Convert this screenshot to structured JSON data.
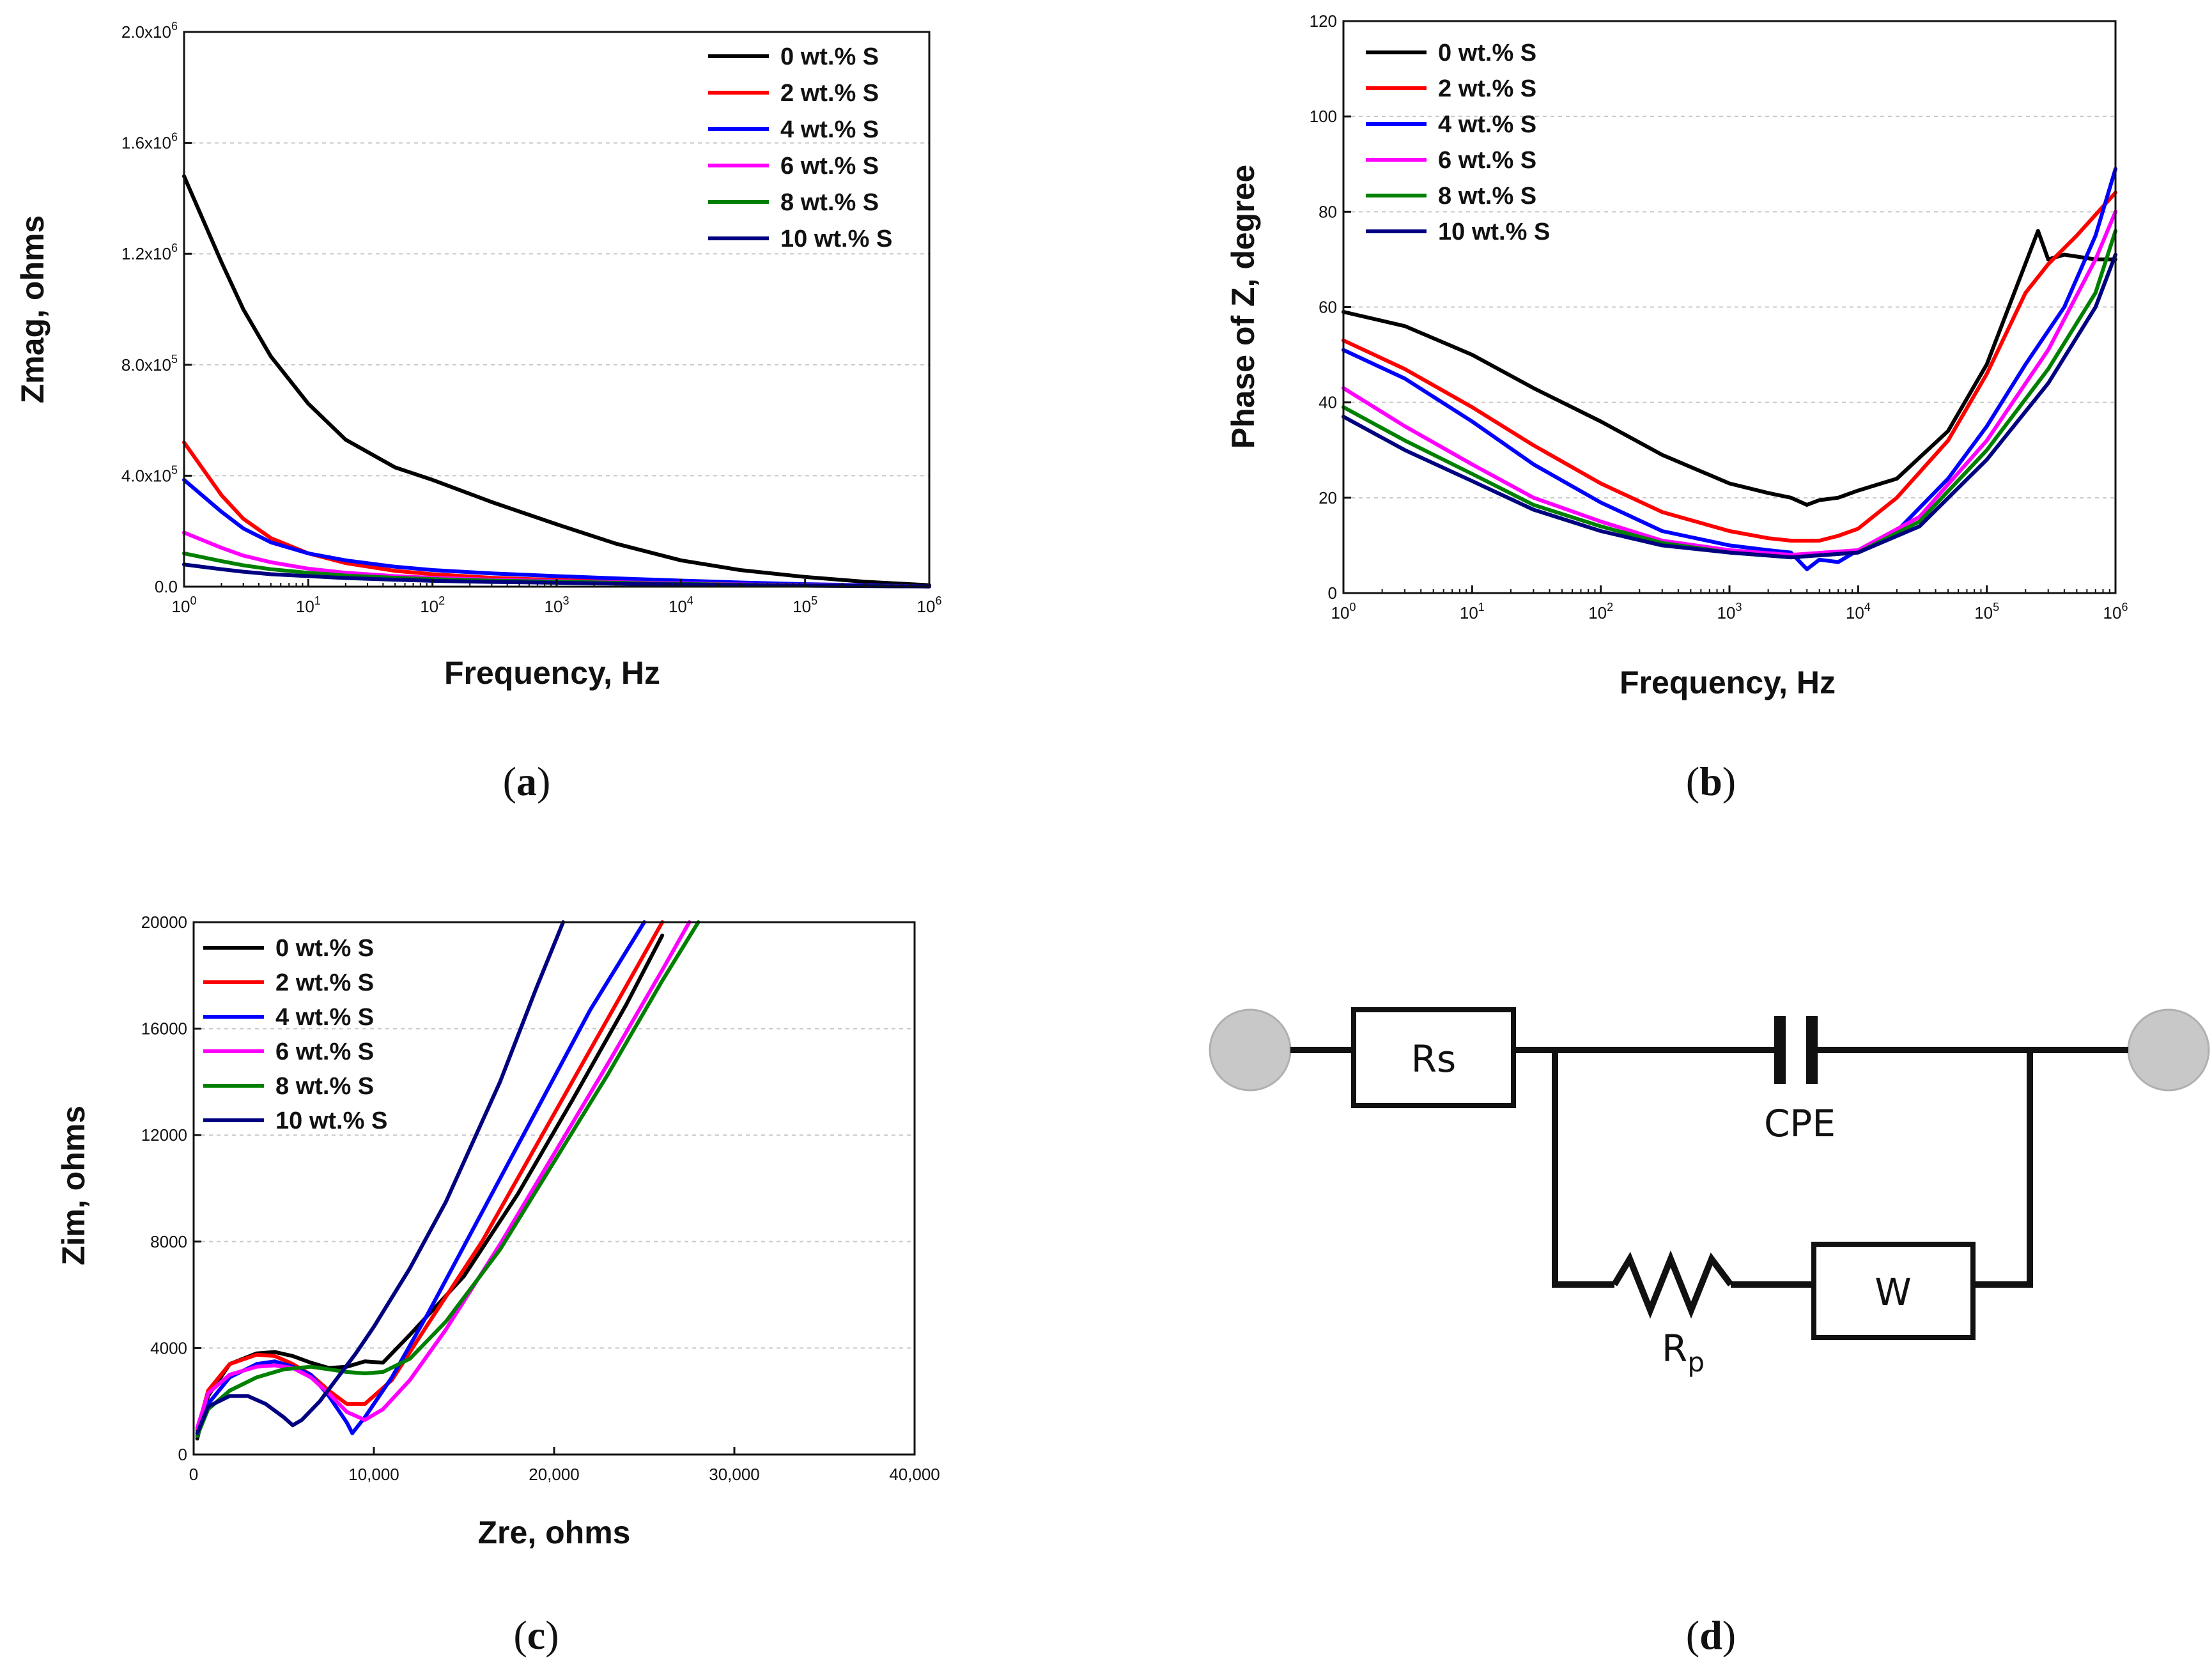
{
  "chart_data": [
    {
      "panel": "(a)",
      "type": "line",
      "xlabel": "Frequency, Hz",
      "ylabel": "Zmag, ohms",
      "xscale": "log",
      "xlim": [
        1,
        1000000
      ],
      "ylim": [
        0,
        2000000
      ],
      "xticks": [
        "10^0",
        "10^1",
        "10^2",
        "10^3",
        "10^4",
        "10^5",
        "10^6"
      ],
      "yticks": [
        "0.0",
        "4.0x10^5",
        "8.0x10^5",
        "1.2x10^6",
        "1.6x10^6",
        "2.0x10^6"
      ],
      "grid": "horizontal dashed",
      "legend_position": "top-right",
      "x": [
        1,
        2,
        3,
        5,
        10,
        20,
        50,
        100,
        300,
        1000,
        3000,
        10000,
        30000,
        100000,
        300000,
        1000000
      ],
      "series": [
        {
          "name": "0 wt.% S",
          "color": "#000000",
          "values": [
            1480000,
            1170000,
            1000000,
            830000,
            660000,
            530000,
            430000,
            385000,
            305000,
            225000,
            155000,
            95000,
            60000,
            35000,
            18000,
            5000
          ]
        },
        {
          "name": "2 wt.% S",
          "color": "#ff0000",
          "values": [
            520000,
            330000,
            245000,
            175000,
            120000,
            85000,
            57000,
            45000,
            32000,
            24000,
            18000,
            12000,
            8000,
            5000,
            3000,
            1000
          ]
        },
        {
          "name": "4 wt.% S",
          "color": "#0000ff",
          "values": [
            385000,
            270000,
            210000,
            160000,
            120000,
            95000,
            72000,
            60000,
            48000,
            38000,
            30000,
            22000,
            15000,
            9000,
            5000,
            1000
          ]
        },
        {
          "name": "6 wt.% S",
          "color": "#ff00ff",
          "values": [
            195000,
            140000,
            112000,
            88000,
            65000,
            50000,
            38000,
            32000,
            25000,
            20000,
            16000,
            12000,
            8000,
            5000,
            3000,
            1000
          ]
        },
        {
          "name": "8 wt.% S",
          "color": "#008000",
          "values": [
            120000,
            92000,
            77000,
            63000,
            50000,
            40000,
            32000,
            27000,
            22000,
            18000,
            14000,
            10000,
            7000,
            4000,
            2500,
            1000
          ]
        },
        {
          "name": "10 wt.% S",
          "color": "#000080",
          "values": [
            80000,
            63000,
            54000,
            45000,
            38000,
            31000,
            25000,
            21000,
            17000,
            14000,
            11000,
            8000,
            5500,
            3500,
            2000,
            1000
          ]
        }
      ]
    },
    {
      "panel": "(b)",
      "type": "line",
      "xlabel": "Frequency, Hz",
      "ylabel": "Phase of Z, degree",
      "xscale": "log",
      "xlim": [
        1,
        1000000
      ],
      "ylim": [
        0,
        120
      ],
      "xticks": [
        "10^0",
        "10^1",
        "10^2",
        "10^3",
        "10^4",
        "10^5",
        "10^6"
      ],
      "yticks": [
        "0",
        "20",
        "40",
        "60",
        "80",
        "100",
        "120"
      ],
      "grid": "horizontal dashed",
      "legend_position": "top-left",
      "series": [
        {
          "name": "0 wt.% S",
          "color": "#000000",
          "x": [
            1,
            3,
            10,
            30,
            100,
            300,
            1000,
            2000,
            3000,
            4000,
            5000,
            7000,
            10000,
            20000,
            50000,
            100000,
            250000,
            300000,
            400000,
            700000,
            1000000
          ],
          "values": [
            59,
            56,
            50,
            43,
            36,
            29,
            23,
            21,
            20,
            18.5,
            19.5,
            20,
            21.5,
            24,
            34,
            48,
            76,
            70,
            71,
            70,
            70
          ]
        },
        {
          "name": "2 wt.% S",
          "color": "#ff0000",
          "x": [
            1,
            3,
            10,
            30,
            100,
            300,
            1000,
            2000,
            3000,
            4000,
            5000,
            7000,
            10000,
            20000,
            50000,
            100000,
            200000,
            300000,
            500000,
            1000000
          ],
          "values": [
            53,
            47,
            39,
            31,
            23,
            17,
            13,
            11.5,
            11,
            11,
            11,
            12,
            13.5,
            20,
            32,
            46,
            63,
            69,
            75,
            84
          ]
        },
        {
          "name": "4 wt.% S",
          "color": "#0000ff",
          "x": [
            1,
            3,
            10,
            30,
            100,
            300,
            1000,
            2000,
            3000,
            4000,
            5000,
            7000,
            10000,
            20000,
            50000,
            100000,
            200000,
            400000,
            700000,
            1000000
          ],
          "values": [
            51,
            45,
            36,
            27,
            19,
            13,
            10,
            9,
            8.5,
            5,
            7,
            6.5,
            9,
            13,
            24,
            35,
            48,
            60,
            75,
            89
          ]
        },
        {
          "name": "6 wt.% S",
          "color": "#ff00ff",
          "x": [
            1,
            3,
            10,
            30,
            100,
            300,
            1000,
            3000,
            10000,
            30000,
            100000,
            300000,
            700000,
            1000000
          ],
          "values": [
            43,
            35,
            27,
            20,
            15,
            11,
            9,
            8,
            9,
            16,
            32,
            51,
            70,
            80
          ]
        },
        {
          "name": "8 wt.% S",
          "color": "#008000",
          "x": [
            1,
            3,
            10,
            30,
            100,
            300,
            1000,
            3000,
            10000,
            30000,
            100000,
            300000,
            700000,
            1000000
          ],
          "values": [
            39,
            32,
            25,
            18.5,
            14,
            10.5,
            8.5,
            7.5,
            8.5,
            15,
            30,
            47,
            63,
            76
          ]
        },
        {
          "name": "10 wt.% S",
          "color": "#000080",
          "x": [
            1,
            3,
            10,
            30,
            100,
            300,
            1000,
            3000,
            10000,
            30000,
            100000,
            300000,
            700000,
            1000000
          ],
          "values": [
            37,
            30,
            23.5,
            17.5,
            13,
            10,
            8.5,
            7.5,
            8.5,
            14,
            28,
            44,
            60,
            71
          ]
        }
      ]
    },
    {
      "panel": "(c)",
      "type": "line",
      "xlabel": "Zre, ohms",
      "ylabel": "Zim, ohms",
      "xlim": [
        0,
        40000
      ],
      "ylim": [
        0,
        20000
      ],
      "xticks": [
        "0",
        "10,000",
        "20,000",
        "30,000",
        "40,000"
      ],
      "yticks": [
        "0",
        "4000",
        "8000",
        "12000",
        "16000",
        "20000"
      ],
      "grid": "horizontal dashed",
      "legend_position": "top-left",
      "series": [
        {
          "name": "0 wt.% S",
          "color": "#000000",
          "x": [
            200,
            800,
            2000,
            3500,
            4500,
            5500,
            6500,
            7500,
            8500,
            9500,
            10500,
            12000,
            15000,
            18000,
            21000,
            24000,
            26000
          ],
          "values": [
            600,
            2200,
            3400,
            3800,
            3850,
            3700,
            3450,
            3250,
            3300,
            3500,
            3450,
            4500,
            6700,
            9800,
            13300,
            16900,
            19500
          ]
        },
        {
          "name": "2 wt.% S",
          "color": "#ff0000",
          "x": [
            200,
            800,
            2000,
            3500,
            4500,
            5500,
            6500,
            7500,
            8500,
            9500,
            11000,
            13000,
            16000,
            19000,
            22000,
            25000,
            26000
          ],
          "values": [
            900,
            2400,
            3400,
            3750,
            3700,
            3400,
            3000,
            2400,
            1900,
            1900,
            2800,
            4900,
            8000,
            11600,
            15200,
            18800,
            20000
          ]
        },
        {
          "name": "4 wt.% S",
          "color": "#0000ff",
          "x": [
            200,
            800,
            2000,
            3500,
            4500,
            5500,
            6500,
            7500,
            8500,
            8800,
            9500,
            11000,
            13000,
            16000,
            19000,
            22000,
            25000
          ],
          "values": [
            700,
            1900,
            2900,
            3400,
            3500,
            3300,
            3000,
            2200,
            1200,
            800,
            1400,
            2900,
            5300,
            9100,
            12900,
            16700,
            20000
          ]
        },
        {
          "name": "6 wt.% S",
          "color": "#ff00ff",
          "x": [
            200,
            800,
            2000,
            3500,
            4500,
            5500,
            6500,
            7500,
            8500,
            9500,
            10500,
            12000,
            14000,
            17000,
            20000,
            23000,
            26000,
            27500
          ],
          "values": [
            1000,
            2300,
            3000,
            3300,
            3350,
            3250,
            2900,
            2300,
            1600,
            1300,
            1700,
            2800,
            4700,
            7900,
            11300,
            14700,
            18200,
            20000
          ]
        },
        {
          "name": "8 wt.% S",
          "color": "#008000",
          "x": [
            200,
            800,
            2000,
            3500,
            5000,
            6500,
            7500,
            8500,
            9500,
            10500,
            12000,
            14000,
            17000,
            20000,
            23000,
            26000,
            28000
          ],
          "values": [
            700,
            1700,
            2400,
            2900,
            3200,
            3300,
            3200,
            3100,
            3050,
            3100,
            3600,
            5000,
            7700,
            11000,
            14300,
            17800,
            20000
          ]
        },
        {
          "name": "10 wt.% S",
          "color": "#000080",
          "x": [
            200,
            800,
            2000,
            3000,
            4000,
            5000,
            5500,
            6000,
            7000,
            8000,
            9000,
            10000,
            12000,
            14000,
            17000,
            19000,
            20500
          ],
          "values": [
            800,
            1800,
            2200,
            2200,
            1900,
            1400,
            1100,
            1300,
            2000,
            2900,
            3800,
            4800,
            7000,
            9500,
            14000,
            17500,
            20000
          ]
        }
      ]
    }
  ],
  "panels": {
    "a": "(a)",
    "b": "(b)",
    "c": "(c)",
    "d": "(d)"
  },
  "circuit": {
    "rs_label": "Rs",
    "cpe_label": "CPE",
    "rp_label": "R",
    "rp_subscript": "p",
    "w_label": "W"
  }
}
